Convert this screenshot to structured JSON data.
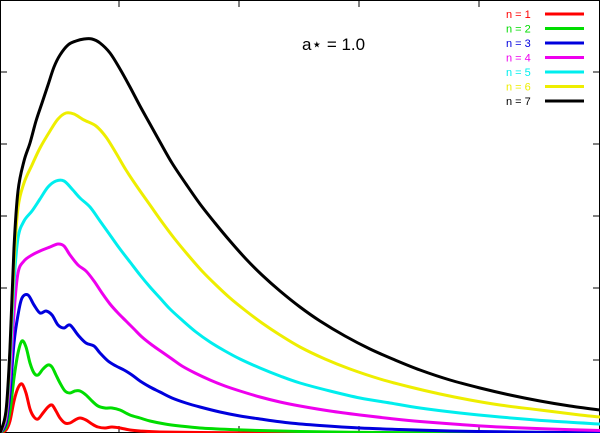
{
  "chart_data": {
    "type": "line",
    "title": "",
    "xlabel": "",
    "ylabel": "",
    "xlim": [
      0,
      600
    ],
    "ylim": [
      0,
      433
    ],
    "grid": false,
    "legend_position": "top-right",
    "annotation": "a⋆ = 1.0",
    "series": [
      {
        "name": "n = 1",
        "color": "#ff0000",
        "points": [
          [
            0,
            0
          ],
          [
            6,
            3
          ],
          [
            10,
            12
          ],
          [
            14,
            32
          ],
          [
            18,
            45
          ],
          [
            22,
            49
          ],
          [
            26,
            40
          ],
          [
            30,
            24
          ],
          [
            34,
            16
          ],
          [
            38,
            14
          ],
          [
            43,
            20
          ],
          [
            48,
            26
          ],
          [
            52,
            28
          ],
          [
            56,
            22
          ],
          [
            60,
            15
          ],
          [
            65,
            10
          ],
          [
            70,
            10
          ],
          [
            75,
            13
          ],
          [
            80,
            15
          ],
          [
            86,
            13
          ],
          [
            92,
            9
          ],
          [
            98,
            6
          ],
          [
            105,
            5
          ],
          [
            112,
            6
          ],
          [
            120,
            5
          ],
          [
            130,
            3
          ],
          [
            140,
            2
          ],
          [
            160,
            1
          ],
          [
            200,
            0.5
          ],
          [
            250,
            0.2
          ],
          [
            300,
            0.1
          ],
          [
            600,
            0
          ]
        ]
      },
      {
        "name": "n = 2",
        "color": "#00dd00",
        "points": [
          [
            0,
            0
          ],
          [
            6,
            6
          ],
          [
            10,
            22
          ],
          [
            14,
            55
          ],
          [
            18,
            80
          ],
          [
            22,
            92
          ],
          [
            26,
            86
          ],
          [
            30,
            70
          ],
          [
            34,
            60
          ],
          [
            38,
            58
          ],
          [
            43,
            64
          ],
          [
            48,
            68
          ],
          [
            52,
            66
          ],
          [
            56,
            58
          ],
          [
            60,
            50
          ],
          [
            65,
            42
          ],
          [
            70,
            40
          ],
          [
            75,
            42
          ],
          [
            80,
            42
          ],
          [
            86,
            38
          ],
          [
            92,
            32
          ],
          [
            98,
            27
          ],
          [
            105,
            25
          ],
          [
            112,
            25
          ],
          [
            120,
            23
          ],
          [
            130,
            18
          ],
          [
            140,
            15
          ],
          [
            150,
            12
          ],
          [
            165,
            9
          ],
          [
            180,
            7
          ],
          [
            200,
            5
          ],
          [
            230,
            3.5
          ],
          [
            260,
            2.5
          ],
          [
            300,
            1.5
          ],
          [
            350,
            0.8
          ],
          [
            400,
            0.4
          ],
          [
            500,
            0.1
          ],
          [
            600,
            0
          ]
        ]
      },
      {
        "name": "n = 3",
        "color": "#0000dd",
        "points": [
          [
            0,
            0
          ],
          [
            6,
            10
          ],
          [
            10,
            40
          ],
          [
            14,
            90
          ],
          [
            18,
            118
          ],
          [
            22,
            135
          ],
          [
            28,
            138
          ],
          [
            34,
            128
          ],
          [
            40,
            120
          ],
          [
            46,
            122
          ],
          [
            52,
            118
          ],
          [
            58,
            108
          ],
          [
            64,
            105
          ],
          [
            70,
            108
          ],
          [
            78,
            98
          ],
          [
            86,
            90
          ],
          [
            94,
            87
          ],
          [
            100,
            80
          ],
          [
            108,
            72
          ],
          [
            116,
            67
          ],
          [
            124,
            63
          ],
          [
            132,
            58
          ],
          [
            140,
            52
          ],
          [
            150,
            46
          ],
          [
            160,
            41
          ],
          [
            172,
            35
          ],
          [
            186,
            30
          ],
          [
            200,
            26
          ],
          [
            220,
            21
          ],
          [
            240,
            17
          ],
          [
            260,
            14
          ],
          [
            290,
            10
          ],
          [
            320,
            7.5
          ],
          [
            360,
            5
          ],
          [
            400,
            3.5
          ],
          [
            450,
            2
          ],
          [
            500,
            1.2
          ],
          [
            550,
            0.6
          ],
          [
            600,
            0.3
          ]
        ]
      },
      {
        "name": "n = 4",
        "color": "#ee00ee",
        "points": [
          [
            0,
            0
          ],
          [
            6,
            14
          ],
          [
            10,
            55
          ],
          [
            14,
            120
          ],
          [
            18,
            160
          ],
          [
            24,
            172
          ],
          [
            32,
            178
          ],
          [
            40,
            182
          ],
          [
            50,
            186
          ],
          [
            58,
            189
          ],
          [
            64,
            187
          ],
          [
            70,
            178
          ],
          [
            78,
            168
          ],
          [
            86,
            162
          ],
          [
            94,
            152
          ],
          [
            102,
            140
          ],
          [
            110,
            129
          ],
          [
            118,
            120
          ],
          [
            126,
            112
          ],
          [
            134,
            104
          ],
          [
            142,
            96
          ],
          [
            152,
            88
          ],
          [
            162,
            81
          ],
          [
            172,
            74
          ],
          [
            182,
            67
          ],
          [
            195,
            60
          ],
          [
            210,
            53
          ],
          [
            225,
            47
          ],
          [
            240,
            42
          ],
          [
            260,
            36
          ],
          [
            280,
            31
          ],
          [
            300,
            27
          ],
          [
            330,
            22
          ],
          [
            360,
            18
          ],
          [
            390,
            14.5
          ],
          [
            420,
            11.5
          ],
          [
            460,
            8.5
          ],
          [
            500,
            6
          ],
          [
            550,
            4
          ],
          [
            600,
            2.5
          ]
        ]
      },
      {
        "name": "n = 5",
        "color": "#00eeee",
        "points": [
          [
            0,
            0
          ],
          [
            6,
            18
          ],
          [
            10,
            70
          ],
          [
            14,
            150
          ],
          [
            18,
            195
          ],
          [
            24,
            212
          ],
          [
            32,
            222
          ],
          [
            40,
            234
          ],
          [
            48,
            246
          ],
          [
            56,
            252
          ],
          [
            64,
            252
          ],
          [
            72,
            244
          ],
          [
            80,
            235
          ],
          [
            90,
            226
          ],
          [
            100,
            212
          ],
          [
            110,
            198
          ],
          [
            120,
            184
          ],
          [
            130,
            171
          ],
          [
            140,
            158
          ],
          [
            150,
            146
          ],
          [
            160,
            135
          ],
          [
            170,
            124
          ],
          [
            182,
            113
          ],
          [
            196,
            101
          ],
          [
            210,
            91
          ],
          [
            225,
            82
          ],
          [
            240,
            74
          ],
          [
            260,
            65
          ],
          [
            280,
            57
          ],
          [
            300,
            50
          ],
          [
            330,
            42
          ],
          [
            360,
            35
          ],
          [
            390,
            30
          ],
          [
            420,
            25
          ],
          [
            460,
            20
          ],
          [
            500,
            16
          ],
          [
            550,
            12
          ],
          [
            600,
            9
          ]
        ]
      },
      {
        "name": "n = 6",
        "color": "#eeee00",
        "points": [
          [
            0,
            0
          ],
          [
            6,
            20
          ],
          [
            10,
            80
          ],
          [
            14,
            170
          ],
          [
            18,
            225
          ],
          [
            24,
            250
          ],
          [
            32,
            268
          ],
          [
            40,
            285
          ],
          [
            50,
            302
          ],
          [
            58,
            314
          ],
          [
            66,
            320
          ],
          [
            74,
            319
          ],
          [
            84,
            313
          ],
          [
            96,
            307
          ],
          [
            106,
            296
          ],
          [
            116,
            280
          ],
          [
            126,
            263
          ],
          [
            138,
            245
          ],
          [
            150,
            228
          ],
          [
            162,
            211
          ],
          [
            174,
            195
          ],
          [
            188,
            178
          ],
          [
            202,
            162
          ],
          [
            216,
            148
          ],
          [
            230,
            135
          ],
          [
            246,
            122
          ],
          [
            262,
            110
          ],
          [
            280,
            98
          ],
          [
            300,
            86
          ],
          [
            325,
            74
          ],
          [
            350,
            64
          ],
          [
            380,
            54
          ],
          [
            410,
            46
          ],
          [
            440,
            39
          ],
          [
            470,
            33
          ],
          [
            500,
            28
          ],
          [
            540,
            23
          ],
          [
            580,
            18
          ],
          [
            600,
            16
          ]
        ]
      },
      {
        "name": "n = 7",
        "color": "#000000",
        "points": [
          [
            0,
            0
          ],
          [
            6,
            22
          ],
          [
            10,
            85
          ],
          [
            14,
            185
          ],
          [
            18,
            242
          ],
          [
            24,
            272
          ],
          [
            30,
            290
          ],
          [
            36,
            312
          ],
          [
            42,
            330
          ],
          [
            48,
            348
          ],
          [
            54,
            366
          ],
          [
            60,
            378
          ],
          [
            68,
            388
          ],
          [
            76,
            392
          ],
          [
            84,
            394
          ],
          [
            92,
            394
          ],
          [
            100,
            390
          ],
          [
            110,
            380
          ],
          [
            120,
            364
          ],
          [
            130,
            346
          ],
          [
            140,
            327
          ],
          [
            150,
            309
          ],
          [
            160,
            291
          ],
          [
            172,
            270
          ],
          [
            186,
            249
          ],
          [
            200,
            229
          ],
          [
            215,
            210
          ],
          [
            230,
            192
          ],
          [
            246,
            174
          ],
          [
            262,
            158
          ],
          [
            280,
            142
          ],
          [
            300,
            126
          ],
          [
            320,
            112
          ],
          [
            345,
            97
          ],
          [
            370,
            84
          ],
          [
            395,
            73
          ],
          [
            420,
            63
          ],
          [
            450,
            53
          ],
          [
            480,
            45
          ],
          [
            510,
            38
          ],
          [
            540,
            32
          ],
          [
            570,
            27
          ],
          [
            600,
            23
          ]
        ]
      }
    ]
  }
}
